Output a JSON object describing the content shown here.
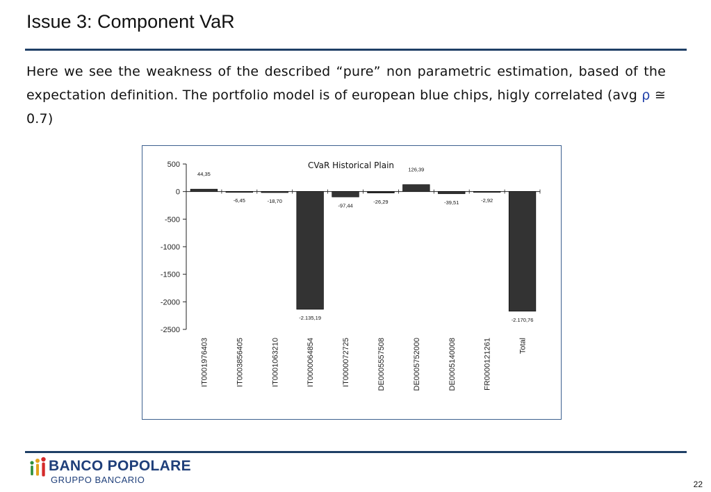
{
  "slide": {
    "title": "Issue 3: Component VaR",
    "body_before_rho": "Here we see the weakness of the described “pure” non parametric estimation, based of the expectation definition. The portfolio model is of european blue chips, higly correlated (avg ",
    "rho_symbol": "ρ",
    "body_after_rho": " ≅ 0.7)",
    "page_number": "22"
  },
  "logo": {
    "main_text": "BANCO POPOLARE",
    "sub_text": "GRUPPO BANCARIO",
    "brand_color": "#1f3f7a"
  },
  "colors": {
    "rule": "#1f3f66",
    "bar": "#333333",
    "frame": "#3b5f8e"
  },
  "chart_data": {
    "type": "bar",
    "title": "CVaR Historical Plain",
    "xlabel": "",
    "ylabel": "",
    "ylim": [
      -2500,
      500
    ],
    "yticks": [
      500,
      0,
      -500,
      -1000,
      -1500,
      -2000,
      -2500
    ],
    "grid": false,
    "legend": "none",
    "categories": [
      "IT0001976403",
      "IT0003856405",
      "IT0001063210",
      "IT0000064854",
      "IT0000072725",
      "DE0005557508",
      "DE0005752000",
      "DE0005140008",
      "FR0000121261",
      "Total"
    ],
    "values": [
      44.35,
      -6.45,
      -18.7,
      -2135.19,
      -97.44,
      -26.29,
      126.39,
      -39.51,
      -2.92,
      -2170.76
    ],
    "value_labels": [
      "44,35",
      "-6,45",
      "-18,70",
      "-2.135,19",
      "-97,44",
      "-26,29",
      "126,39",
      "-39,51",
      "-2,92",
      "-2.170,76"
    ]
  }
}
